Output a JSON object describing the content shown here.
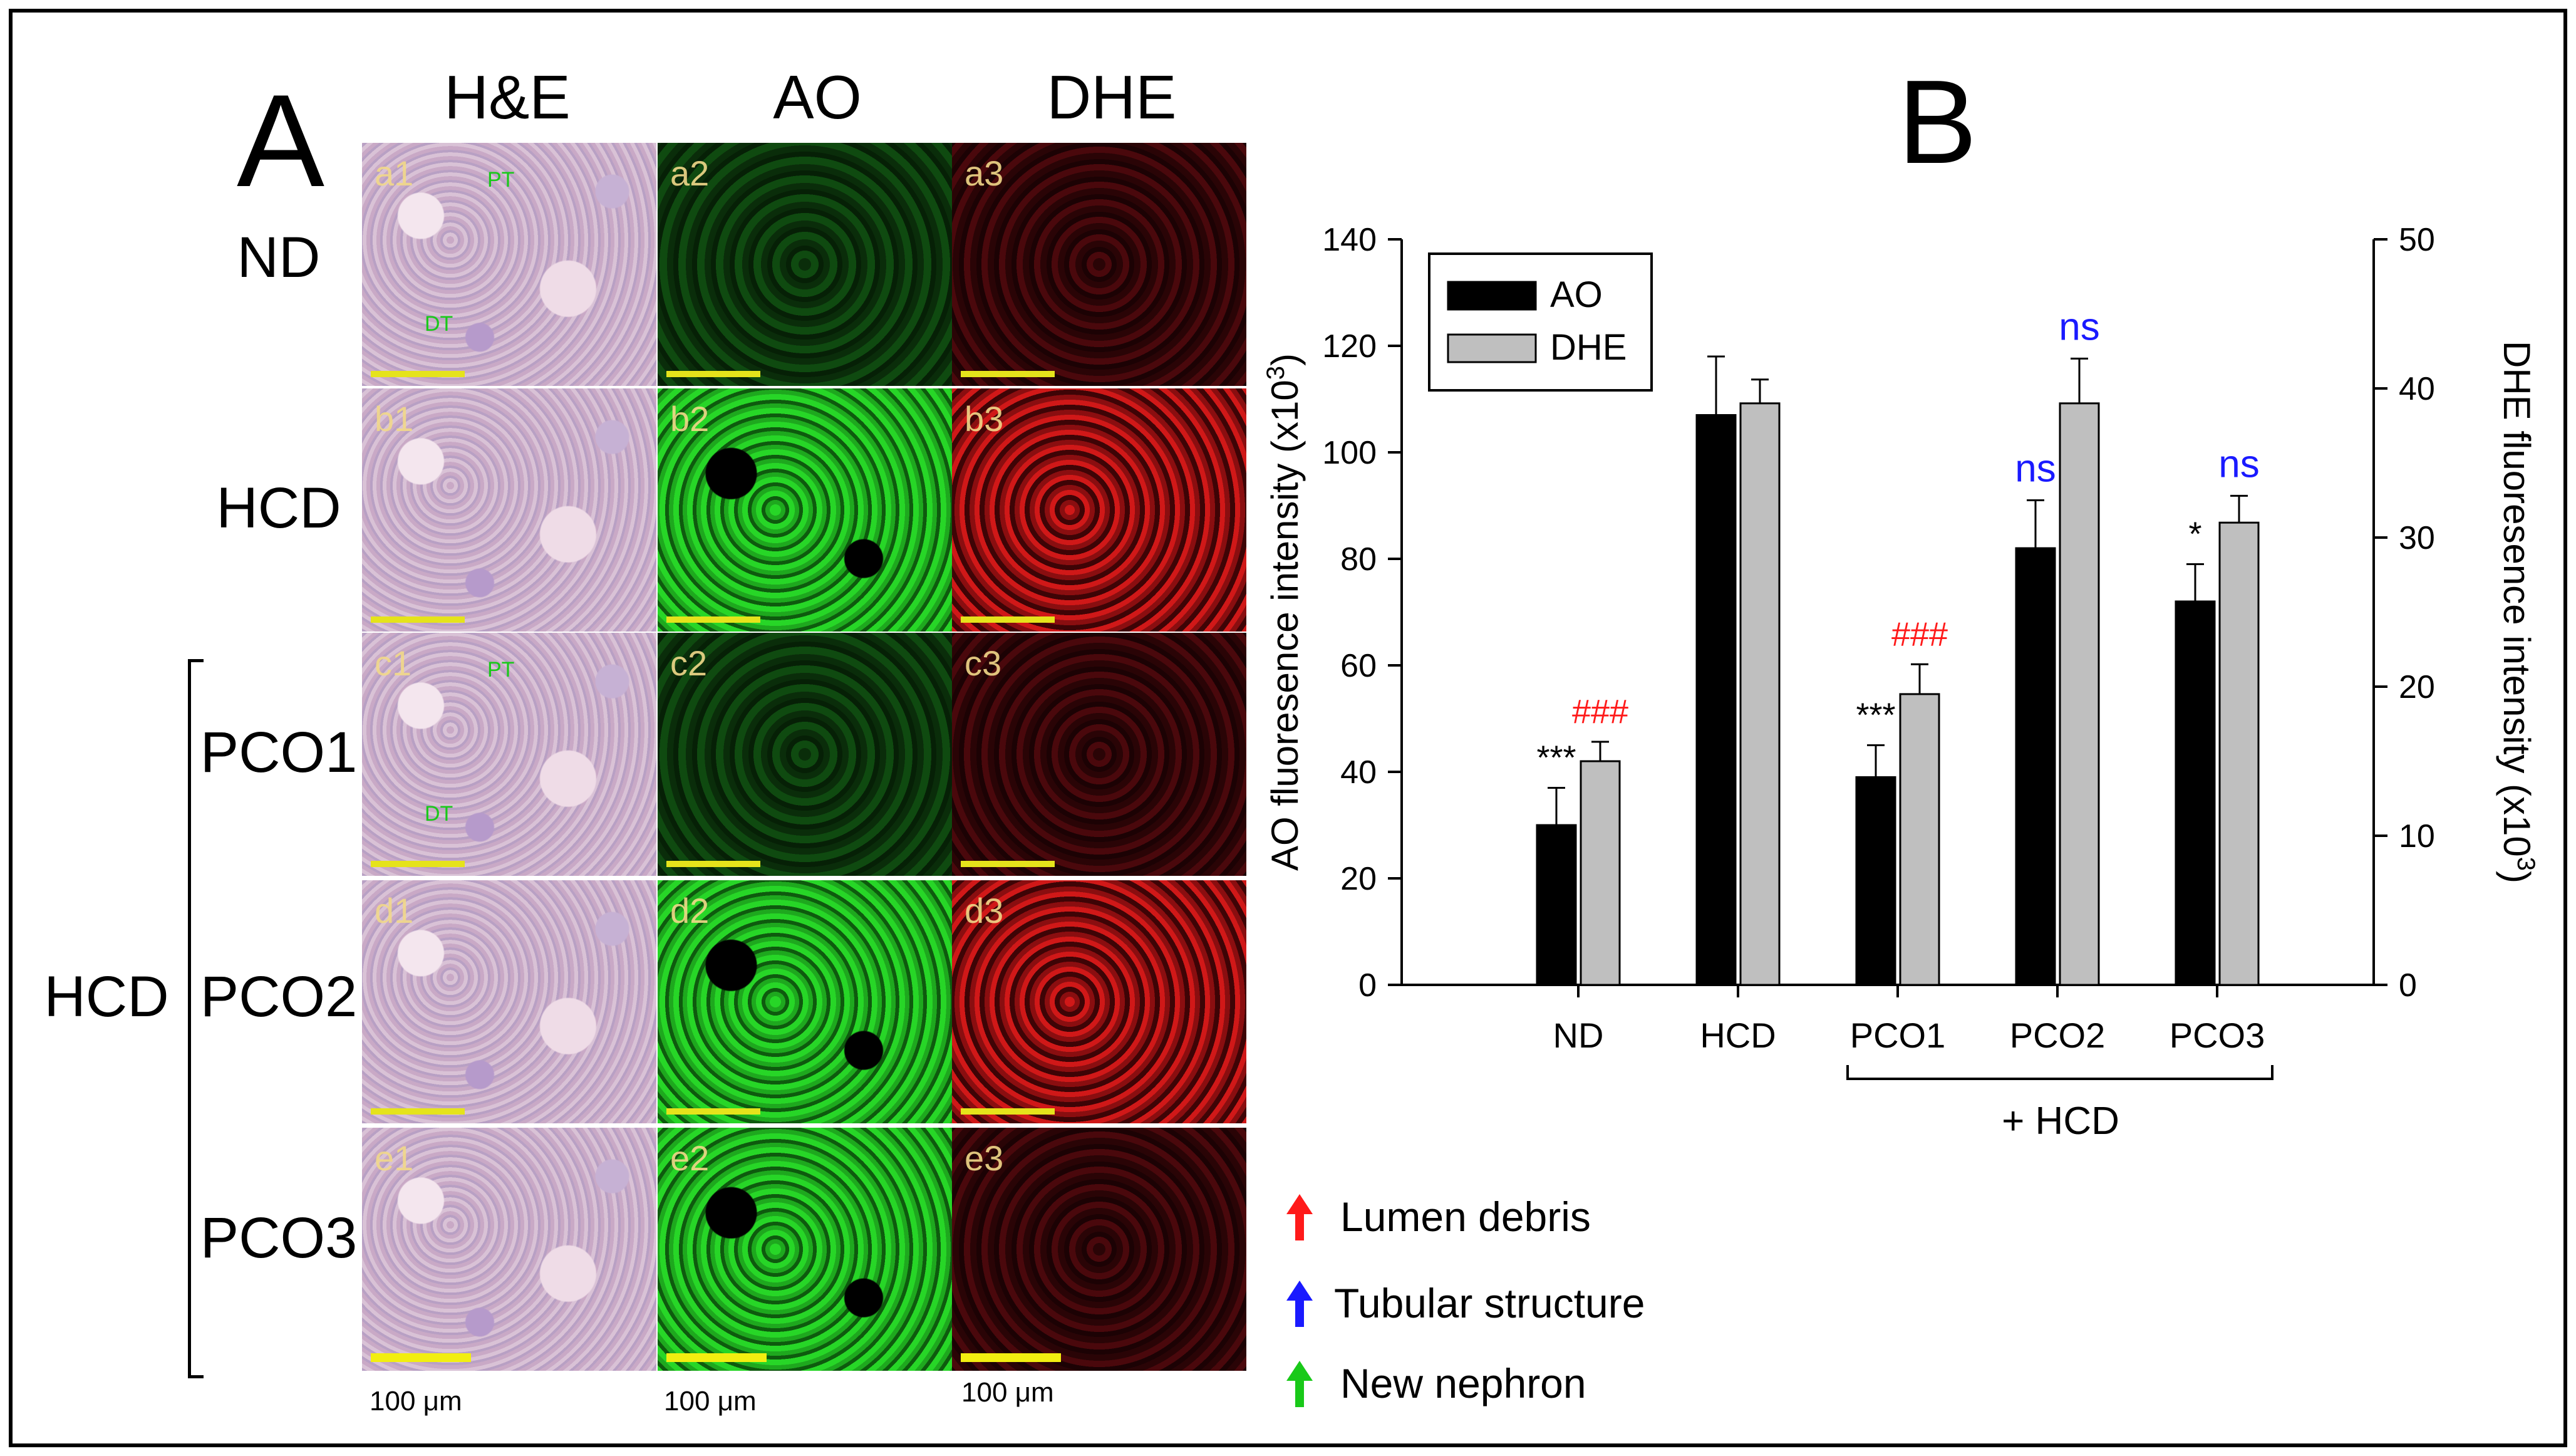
{
  "panel_a": {
    "letter": "A",
    "columns": [
      "H&E",
      "AO",
      "DHE"
    ],
    "rows": [
      "ND",
      "HCD",
      "PCO1",
      "PCO2",
      "PCO3"
    ],
    "group_label": "HCD",
    "tiles": [
      [
        "a1",
        "a2",
        "a3"
      ],
      [
        "b1",
        "b2",
        "b3"
      ],
      [
        "c1",
        "c2",
        "c3"
      ],
      [
        "d1",
        "d2",
        "d3"
      ],
      [
        "e1",
        "e2",
        "e3"
      ]
    ],
    "tile_markers": {
      "pt": "PT",
      "dt": "DT"
    },
    "scale_bars": [
      "100 μm",
      "100 μm",
      "100 μm"
    ]
  },
  "legend_arrows": {
    "items": [
      {
        "label": "Lumen debris",
        "color": "#ff1a1a"
      },
      {
        "label": "Tubular structure",
        "color": "#1a1aff"
      },
      {
        "label": "New nephron",
        "color": "#19c919"
      }
    ]
  },
  "panel_b": {
    "letter": "B",
    "group_note": "+ HCD",
    "y_left_title": "AO fluoresence intensity (x10",
    "y_right_title": "DHE fluoresence intensity (x10",
    "exponent": "3",
    "close_paren": ")",
    "legend": [
      "AO",
      "DHE"
    ]
  },
  "chart_data": {
    "type": "bar",
    "categories": [
      "ND",
      "HCD",
      "PCO1",
      "PCO2",
      "PCO3"
    ],
    "series": [
      {
        "name": "AO",
        "axis": "left",
        "color": "#000000",
        "values": [
          30,
          107,
          39,
          82,
          72
        ],
        "errors": [
          7,
          11,
          6,
          9,
          7
        ]
      },
      {
        "name": "DHE",
        "axis": "right",
        "color": "#bfbfbf",
        "values": [
          15,
          39,
          19.5,
          39,
          31
        ],
        "errors": [
          1.3,
          1.6,
          2,
          3,
          1.8
        ]
      }
    ],
    "ylim_left": [
      0,
      140
    ],
    "yticks_left": [
      0,
      20,
      40,
      60,
      80,
      100,
      120,
      140
    ],
    "ylim_right": [
      0,
      50
    ],
    "yticks_right": [
      0,
      10,
      20,
      30,
      40,
      50
    ],
    "annotations": [
      {
        "category": "ND",
        "series": "AO",
        "text": "***",
        "color": "#000000"
      },
      {
        "category": "ND",
        "series": "DHE",
        "text": "###",
        "color": "#ff1a1a"
      },
      {
        "category": "PCO1",
        "series": "AO",
        "text": "***",
        "color": "#000000"
      },
      {
        "category": "PCO1",
        "series": "DHE",
        "text": "###",
        "color": "#ff1a1a"
      },
      {
        "category": "PCO2",
        "series": "AO",
        "text": "ns",
        "color": "#1a1aff"
      },
      {
        "category": "PCO2",
        "series": "DHE",
        "text": "ns",
        "color": "#1a1aff"
      },
      {
        "category": "PCO3",
        "series": "AO",
        "text": "*",
        "color": "#000000"
      },
      {
        "category": "PCO3",
        "series": "DHE",
        "text": "ns",
        "color": "#1a1aff"
      }
    ],
    "legend_position": "top-left"
  }
}
